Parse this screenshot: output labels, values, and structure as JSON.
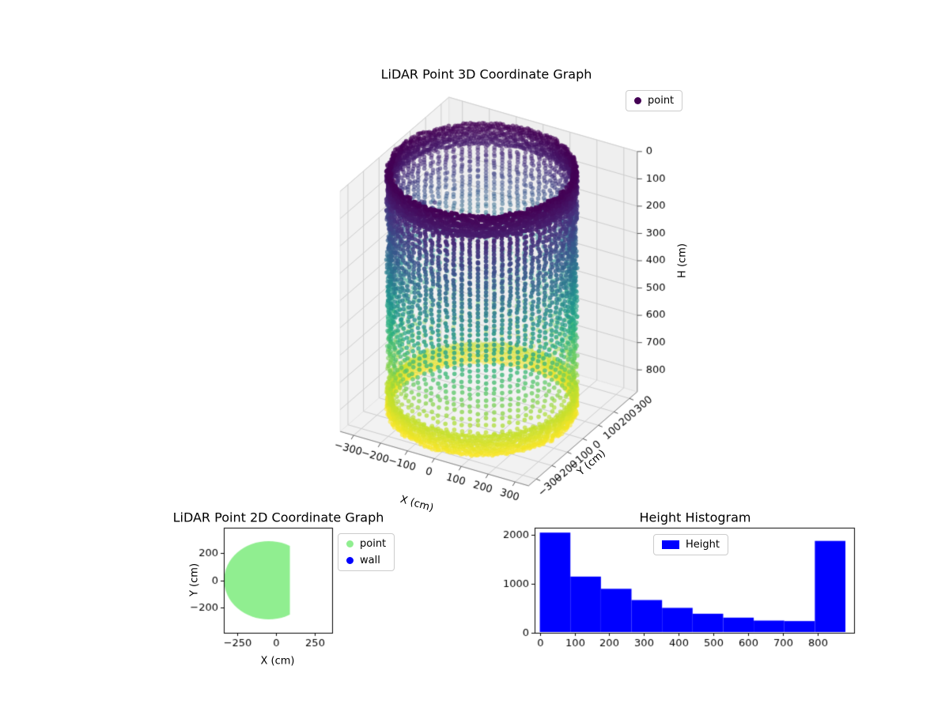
{
  "figure": {
    "background": "#ffffff"
  },
  "chart_data": [
    {
      "id": "lidar-3d",
      "type": "scatter",
      "projection": "3d",
      "title": "LiDAR Point 3D Coordinate Graph",
      "xlabel": "X (cm)",
      "ylabel": "Y (cm)",
      "zlabel": "H (cm)",
      "xlim": [
        -350,
        350
      ],
      "ylim": [
        -350,
        350
      ],
      "hlim": [
        0,
        880
      ],
      "xticks": [
        -300,
        -200,
        -100,
        0,
        100,
        200,
        300
      ],
      "yticks": [
        -300,
        -200,
        -100,
        0,
        100,
        200,
        300
      ],
      "hticks": [
        0,
        100,
        200,
        300,
        400,
        500,
        600,
        700,
        800
      ],
      "h_axis_inverted": true,
      "view": {
        "elev": 30,
        "azim": -60
      },
      "colormap": "viridis",
      "color_by": "height",
      "legend": [
        {
          "label": "point",
          "color": "#440154"
        }
      ],
      "series": [
        {
          "name": "point",
          "shape": "cylinder_wall",
          "center_x": -25,
          "center_y": 0,
          "radius": 300,
          "h_min": 0,
          "h_max": 880,
          "dense_top_band": [
            0,
            88
          ],
          "dense_bottom_band": [
            800,
            880
          ]
        }
      ]
    },
    {
      "id": "lidar-2d",
      "type": "scatter",
      "title": "LiDAR Point 2D Coordinate Graph",
      "xlabel": "X (cm)",
      "ylabel": "Y (cm)",
      "xlim": [
        -340,
        365
      ],
      "ylim": [
        -390,
        390
      ],
      "xticks": [
        -250,
        0,
        250
      ],
      "yticks": [
        -200,
        0,
        200
      ],
      "legend": [
        {
          "label": "point",
          "color": "#90ee90"
        },
        {
          "label": "wall",
          "color": "#0000ff"
        }
      ],
      "region": {
        "name": "point",
        "shape": "clipped_disk",
        "center_x": -48,
        "center_y": 0,
        "radius": 290,
        "clip_x_max": 90,
        "color": "#90ee90"
      }
    },
    {
      "id": "height-histogram",
      "type": "bar",
      "title": "Height Histogram",
      "legend": [
        {
          "label": "Height",
          "color": "#0000ff"
        }
      ],
      "bar_color": "#0000ff",
      "bin_edges": [
        0,
        88,
        176,
        264,
        352,
        440,
        528,
        616,
        704,
        792,
        880
      ],
      "values": [
        2050,
        1150,
        900,
        670,
        510,
        390,
        310,
        250,
        240,
        1880
      ],
      "xticks": [
        0,
        100,
        200,
        300,
        400,
        500,
        600,
        700,
        800
      ],
      "yticks": [
        0,
        1000,
        2000
      ],
      "xlim": [
        -15,
        905
      ],
      "ylim": [
        0,
        2150
      ]
    }
  ]
}
